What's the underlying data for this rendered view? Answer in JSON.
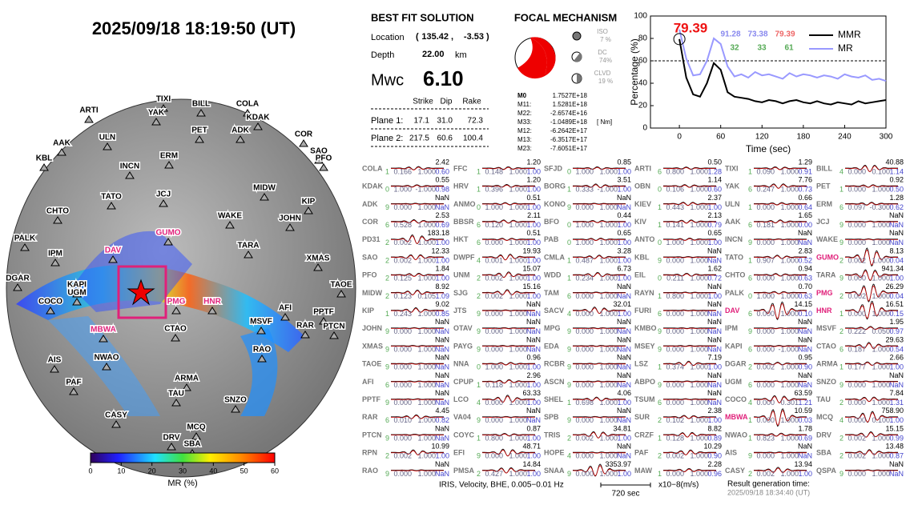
{
  "header": {
    "title": "2025/09/18  18:19:50 (UT)"
  },
  "solution": {
    "title": "BEST FIT SOLUTION",
    "location_label": "Location",
    "lon": "135.42",
    "lat": "-3.53",
    "depth_label": "Depth",
    "depth": "22.00",
    "depth_unit": "km",
    "mw_label": "Mwc",
    "mw": "6.10",
    "columns": [
      "Strike",
      "Dip",
      "Rake"
    ],
    "planes": [
      {
        "label": "Plane 1:",
        "values": [
          "17.1",
          "31.0",
          "72.3"
        ]
      },
      {
        "label": "Plane 2:",
        "values": [
          "217.5",
          "60.6",
          "100.4"
        ]
      }
    ]
  },
  "mechanism": {
    "title": "FOCAL MECHANISM",
    "components": [
      {
        "name": "ISO",
        "pct": "7 %"
      },
      {
        "name": "DC",
        "pct": "74%"
      },
      {
        "name": "CLVD",
        "pct": "19 %"
      }
    ],
    "tensor": [
      [
        "M0",
        "1.7527E+18"
      ],
      [
        "M11:",
        "1.5281E+18"
      ],
      [
        "M22:",
        "-2.6574E+16"
      ],
      [
        "M33:",
        "-1.0489E+18"
      ],
      [
        "M12:",
        "-6.2642E+17"
      ],
      [
        "M13:",
        "-6.3517E+17"
      ],
      [
        "M23:",
        "-7.6051E+17"
      ]
    ],
    "unit": "[ Nm]"
  },
  "chart_data": {
    "type": "line",
    "xlabel": "Time (sec)",
    "ylabel": "Percentage (%)",
    "x": [
      0,
      10,
      20,
      30,
      40,
      50,
      60,
      70,
      80,
      90,
      100,
      110,
      120,
      130,
      140,
      150,
      160,
      170,
      180,
      190,
      200,
      210,
      220,
      230,
      240,
      250,
      260,
      270,
      280,
      290,
      300
    ],
    "series": [
      {
        "name": "MMR",
        "color": "#000000",
        "values": [
          79.39,
          45,
          30,
          28,
          40,
          58,
          52,
          32,
          28,
          27,
          26,
          24,
          23,
          25,
          24,
          22,
          24,
          25,
          23,
          22,
          24,
          22,
          21,
          23,
          22,
          21,
          24,
          22,
          23,
          24,
          25
        ]
      },
      {
        "name": "MR",
        "color": "#9999ff",
        "values": [
          88,
          62,
          47,
          48,
          60,
          80,
          75,
          55,
          46,
          48,
          45,
          50,
          47,
          48,
          46,
          44,
          49,
          46,
          48,
          47,
          45,
          47,
          46,
          44,
          48,
          46,
          45,
          47,
          43,
          44,
          42
        ]
      }
    ],
    "xlim": [
      -42,
      300
    ],
    "ylim": [
      0,
      100
    ],
    "xticks": [
      0,
      60,
      120,
      180,
      240,
      300
    ],
    "yticks": [
      0,
      20,
      40,
      60,
      80,
      100
    ],
    "hline": 60,
    "annotations": [
      {
        "text": "79.39",
        "color": "#ee1111"
      },
      {
        "text": "91.28",
        "color": "#8888ee"
      },
      {
        "text": "73.38",
        "color": "#8888ee"
      },
      {
        "text": "79.39",
        "color": "#ee6666"
      },
      {
        "text": "32",
        "color": "#55aa55"
      },
      {
        "text": "33",
        "color": "#55aa55"
      },
      {
        "text": "61",
        "color": "#55aa55"
      }
    ]
  },
  "map": {
    "stations": [
      "ARTI",
      "TIXI",
      "YAK",
      "BILL",
      "COLA",
      "KDAK",
      "ULN",
      "AAK",
      "PET",
      "ADK",
      "COR",
      "SAO",
      "PFO",
      "KBL",
      "INCN",
      "ERM",
      "MIDW",
      "KIP",
      "TATO",
      "JCJ",
      "CHTO",
      "WAKE",
      "JOHN",
      "PALK",
      "GUMO",
      "IPM",
      "DAV",
      "TARA",
      "XMAS",
      "DGAR",
      "KAPI",
      "UGM",
      "COCO",
      "PMG",
      "HNR",
      "TAOE",
      "AFI",
      "PPTF",
      "RAR",
      "PTCN",
      "MBWA",
      "CTAO",
      "MSVF",
      "NWAO",
      "AIS",
      "ARMA",
      "RAO",
      "PAF",
      "TAU",
      "SNZO",
      "MCQ",
      "CASY",
      "DRV",
      "SBA"
    ],
    "highlight_color": "#e0207a",
    "highlighted": [
      "GUMO",
      "DAV",
      "PMG",
      "HNR",
      "MBWA"
    ],
    "colorbar": {
      "lim": [
        0,
        60
      ],
      "ticks": [
        0,
        10,
        20,
        30,
        40,
        50,
        60
      ],
      "label": "MR (%)"
    }
  },
  "stations": [
    [
      [
        "COLA",
        "2.42",
        "1",
        "0.166",
        "1.000",
        "0.60"
      ],
      [
        "KDAK",
        "0.55",
        "0",
        "1.000",
        "-1.000",
        "0.98"
      ],
      [
        "ADK",
        "NaN",
        "9",
        "0.000",
        "1.000",
        "NaN"
      ],
      [
        "COR",
        "2.53",
        "6",
        "0.528",
        "1.000",
        "0.69"
      ],
      [
        "PD31",
        "183.18",
        "2",
        "0.002",
        "1.000",
        "1.00"
      ],
      [
        "SAO",
        "12.33",
        "2",
        "0.002",
        "1.000",
        "1.00"
      ],
      [
        "PFO",
        "1.84",
        "2",
        "0.125",
        "1.000",
        "1.00"
      ],
      [
        "MIDW",
        "8.92",
        "2",
        "0.123",
        "0.105",
        "1.09"
      ],
      [
        "KIP",
        "9.02",
        "1",
        "0.243",
        "1.000",
        "0.85"
      ],
      [
        "JOHN",
        "NaN",
        "9",
        "0.000",
        "1.000",
        "NaN"
      ],
      [
        "XMAS",
        "NaN",
        "9",
        "0.000",
        "1.000",
        "NaN"
      ],
      [
        "TAOE",
        "NaN",
        "9",
        "0.000",
        "1.000",
        "NaN"
      ],
      [
        "AFI",
        "NaN",
        "6",
        "0.000",
        "1.000",
        "NaN"
      ],
      [
        "PPTF",
        "NaN",
        "9",
        "0.000",
        "1.000",
        "NaN"
      ],
      [
        "RAR",
        "4.45",
        "6",
        "0.010",
        "1.000",
        "0.82"
      ],
      [
        "PTCN",
        "NaN",
        "9",
        "0.000",
        "1.000",
        "NaN"
      ],
      [
        "RPN",
        "10.99",
        "2",
        "0.002",
        "1.000",
        "1.00"
      ],
      [
        "RAO",
        "NaN",
        "9",
        "0.000",
        "1.000",
        "NaN"
      ]
    ],
    [
      [
        "FFC",
        "1.20",
        "1",
        "0.148",
        "1.000",
        "1.00"
      ],
      [
        "HRV",
        "1.20",
        "1",
        "0.396",
        "1.000",
        "1.00"
      ],
      [
        "ANMO",
        "0.51",
        "0",
        "1.000",
        "1.000",
        "1.00"
      ],
      [
        "BBSR",
        "2.11",
        "6",
        "0.120",
        "1.000",
        "1.00"
      ],
      [
        "HKT",
        "0.51",
        "6",
        "0.000",
        "1.000",
        "1.00"
      ],
      [
        "DWPF",
        "19.93",
        "4",
        "0.001",
        "1.000",
        "1.00"
      ],
      [
        "UNM",
        "15.07",
        "2",
        "0.002",
        "1.000",
        "1.00"
      ],
      [
        "SJG",
        "15.16",
        "2",
        "0.002",
        "1.000",
        "1.00"
      ],
      [
        "JTS",
        "NaN",
        "9",
        "0.000",
        "1.000",
        "NaN"
      ],
      [
        "OTAV",
        "NaN",
        "9",
        "0.000",
        "1.000",
        "NaN"
      ],
      [
        "PAYG",
        "NaN",
        "9",
        "0.000",
        "1.000",
        "NaN"
      ],
      [
        "NNA",
        "0.96",
        "0",
        "1.000",
        "1.000",
        "1.00"
      ],
      [
        "CPUP",
        "2.96",
        "1",
        "0.118",
        "1.000",
        "1.00"
      ],
      [
        "LCO",
        "63.33",
        "4",
        "0.000",
        "1.000",
        "1.00"
      ],
      [
        "VA04",
        "NaN",
        "9",
        "0.000",
        "1.000",
        "NaN"
      ],
      [
        "COYC",
        "0.87",
        "1",
        "0.800",
        "1.000",
        "1.00"
      ],
      [
        "EFI",
        "48.71",
        "9",
        "0.000",
        "1.000",
        "1.00"
      ],
      [
        "PMSA",
        "14.84",
        "2",
        "0.427",
        "1.000",
        "1.00"
      ]
    ],
    [
      [
        "SFJD",
        "0.85",
        "0",
        "1.000",
        "1.000",
        "1.00"
      ],
      [
        "BORG",
        "3.51",
        "1",
        "0.333",
        "-1.000",
        "1.00"
      ],
      [
        "KONO",
        "NaN",
        "9",
        "0.000",
        "1.000",
        "NaN"
      ],
      [
        "BFO",
        "0.44",
        "0",
        "1.000",
        "1.000",
        "1.00"
      ],
      [
        "PAB",
        "0.65",
        "0",
        "1.000",
        "1.000",
        "1.00"
      ],
      [
        "CMLA",
        "3.28",
        "1",
        "0.487",
        "1.000",
        "1.00"
      ],
      [
        "WDD",
        "6.73",
        "1",
        "0.234",
        "1.000",
        "1.00"
      ],
      [
        "TAM",
        "NaN",
        "6",
        "0.000",
        "1.000",
        "NaN"
      ],
      [
        "SACV",
        "32.01",
        "4",
        "0.000",
        "1.000",
        "1.00"
      ],
      [
        "MPG",
        "NaN",
        "9",
        "0.000",
        "1.000",
        "NaN"
      ],
      [
        "EDA",
        "NaN",
        "9",
        "0.000",
        "1.000",
        "NaN"
      ],
      [
        "RCBR",
        "NaN",
        "9",
        "0.000",
        "1.000",
        "NaN"
      ],
      [
        "ASCN",
        "NaN",
        "9",
        "0.000",
        "1.000",
        "NaN"
      ],
      [
        "SHEL",
        "4.06",
        "1",
        "0.698",
        "1.000",
        "1.00"
      ],
      [
        "SPB",
        "NaN",
        "9",
        "0.000",
        "1.000",
        "NaN"
      ],
      [
        "TRIS",
        "34.81",
        "2",
        "0.002",
        "1.000",
        "1.00"
      ],
      [
        "HOPE",
        "NaN",
        "4",
        "0.000",
        "1.000",
        "NaN"
      ],
      [
        "SNAA",
        "3353.97",
        "9",
        "0.000",
        "1.000",
        "1.00"
      ]
    ],
    [
      [
        "ARTI",
        "0.50",
        "6",
        "0.800",
        "1.000",
        "1.28"
      ],
      [
        "OBN",
        "1.14",
        "0",
        "0.106",
        "1.000",
        "0.60"
      ],
      [
        "KIEV",
        "2.37",
        "1",
        "0.443",
        "1.000",
        "1.00"
      ],
      [
        "KIV",
        "2.13",
        "1",
        "0.141",
        "1.000",
        "0.79"
      ],
      [
        "ANTO",
        "0.65",
        "0",
        "1.000",
        "1.000",
        "1.00"
      ],
      [
        "KBL",
        "NaN",
        "9",
        "0.000",
        "1.000",
        "NaN"
      ],
      [
        "EIL",
        "1.62",
        "0",
        "0.211",
        "1.000",
        "0.72"
      ],
      [
        "RAYN",
        "NaN",
        "1",
        "0.800",
        "1.000",
        "1.00"
      ],
      [
        "FURI",
        "NaN",
        "6",
        "0.000",
        "1.000",
        "NaN"
      ],
      [
        "KMBO",
        "NaN",
        "9",
        "0.000",
        "1.000",
        "NaN"
      ],
      [
        "MSEY",
        "NaN",
        "9",
        "0.000",
        "1.000",
        "NaN"
      ],
      [
        "LSZ",
        "7.19",
        "1",
        "0.374",
        "1.000",
        "1.00"
      ],
      [
        "ABPO",
        "NaN",
        "9",
        "0.000",
        "1.000",
        "NaN"
      ],
      [
        "TSUM",
        "NaN",
        "6",
        "0.000",
        "1.000",
        "NaN"
      ],
      [
        "SUR",
        "2.38",
        "2",
        "0.102",
        "1.000",
        "1.00"
      ],
      [
        "CRZF",
        "8.82",
        "1",
        "0.128",
        "1.000",
        "0.89"
      ],
      [
        "PAF",
        "10.29",
        "2",
        "0.002",
        "1.000",
        "0.90"
      ],
      [
        "MAW",
        "2.28",
        "1",
        "0.000",
        "1.000",
        "0.96"
      ]
    ],
    [
      [
        "TIXI",
        "1.29",
        "1",
        "0.090",
        "1.000",
        "0.91"
      ],
      [
        "YAK",
        "7.76",
        "6",
        "0.247",
        "1.000",
        "0.73"
      ],
      [
        "ULN",
        "0.66",
        "1",
        "0.000",
        "1.000",
        "0.64"
      ],
      [
        "AAK",
        "1.65",
        "6",
        "0.181",
        "1.000",
        "0.00"
      ],
      [
        "INCN",
        "NaN",
        "9",
        "0.000",
        "1.000",
        "NaN"
      ],
      [
        "TATO",
        "2.83",
        "1",
        "0.907",
        "1.000",
        "0.52"
      ],
      [
        "CHTO",
        "0.94",
        "6",
        "0.000",
        "1.000",
        "0.63"
      ],
      [
        "PALK",
        "0.70",
        "0",
        "1.000",
        "1.000",
        "0.63"
      ],
      [
        "DAV",
        "14.15",
        "6",
        "0.000",
        "1.000",
        "0.10"
      ],
      [
        "IPM",
        "NaN",
        "9",
        "0.000",
        "1.000",
        "NaN"
      ],
      [
        "KAPI",
        "NaN",
        "6",
        "0.000",
        "-1.000",
        "NaN"
      ],
      [
        "DGAR",
        "0.95",
        "2",
        "0.002",
        "1.000",
        "0.90"
      ],
      [
        "UGM",
        "NaN",
        "6",
        "0.000",
        "1.000",
        "NaN"
      ],
      [
        "COCO",
        "63.59",
        "4",
        "0.000",
        "0.301",
        "1.21"
      ],
      [
        "MBWA",
        "10.59",
        "1",
        "0.000",
        "1.000",
        "0.03"
      ],
      [
        "NWAO",
        "1.78",
        "1",
        "0.823",
        "1.000",
        "0.69"
      ],
      [
        "AIS",
        "NaN",
        "9",
        "0.000",
        "1.000",
        "NaN"
      ],
      [
        "CASY",
        "13.94",
        "2",
        "0.002",
        "1.000",
        "1.00"
      ]
    ],
    [
      [
        "BILL",
        "40.88",
        "4",
        "0.000",
        "0.100",
        "1.14"
      ],
      [
        "PET",
        "0.92",
        "1",
        "0.000",
        "1.000",
        "0.50"
      ],
      [
        "ERM",
        "1.28",
        "6",
        "0.097",
        "-0.300",
        "0.62"
      ],
      [
        "JCJ",
        "NaN",
        "9",
        "0.000",
        "1.000",
        "NaN"
      ],
      [
        "WAKE",
        "NaN",
        "9",
        "0.000",
        "1.000",
        "NaN"
      ],
      [
        "GUMO",
        "8.13",
        "2",
        "0.002",
        "1.000",
        "0.04"
      ],
      [
        "TARA",
        "941.34",
        "9",
        "0.000",
        "1.000",
        "1.00"
      ],
      [
        "PMG",
        "26.29",
        "2",
        "0.002",
        "1.000",
        "0.04"
      ],
      [
        "HNR",
        "16.51",
        "1",
        "0.000",
        "1.000",
        "0.15"
      ],
      [
        "MSVF",
        "1.95",
        "2",
        "0.222",
        "0.050",
        "0.97"
      ],
      [
        "CTAO",
        "29.63",
        "6",
        "0.187",
        "1.000",
        "0.54"
      ],
      [
        "ARMA",
        "2.66",
        "1",
        "0.177",
        "1.000",
        "1.00"
      ],
      [
        "SNZO",
        "NaN",
        "9",
        "0.000",
        "1.000",
        "NaN"
      ],
      [
        "TAU",
        "7.84",
        "2",
        "0.000",
        "1.000",
        "1.31"
      ],
      [
        "MCQ",
        "758.90",
        "4",
        "0.000",
        "0.100",
        "1.00"
      ],
      [
        "DRV",
        "15.15",
        "2",
        "0.002",
        "1.000",
        "0.99"
      ],
      [
        "SBA",
        "13.48",
        "2",
        "0.002",
        "1.000",
        "0.87"
      ],
      [
        "QSPA",
        "NaN",
        "9",
        "0.000",
        "1.000",
        "NaN"
      ]
    ]
  ],
  "footer": {
    "info": "IRIS, Velocity,   BHE,  0.005−0.01 Hz",
    "scale": "720 sec",
    "amp": "x10−8(m/s)",
    "time_label": "Result generation time:",
    "time": "2025/09/18 18:34:40 (UT)"
  }
}
